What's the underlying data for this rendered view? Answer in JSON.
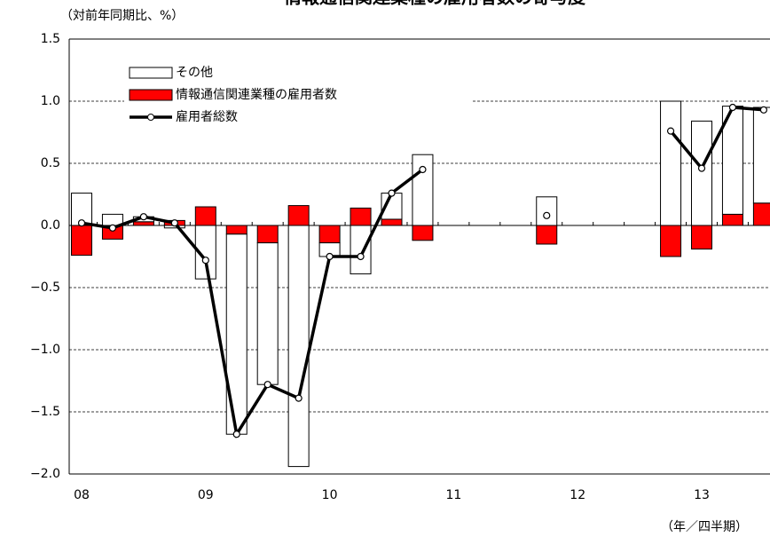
{
  "chart_data": {
    "type": "bar-line",
    "title": "情報通信関連業種の雇用者数の寄与度",
    "y_label": "（対前年同期比、%）",
    "x_label": "（年／四半期）",
    "categories": [
      "08",
      null,
      null,
      null,
      "09",
      null,
      null,
      null,
      "10",
      null,
      null,
      null,
      "11",
      null,
      null,
      null,
      "12",
      null,
      null,
      null,
      "13",
      null,
      null,
      null
    ],
    "series": [
      {
        "name": "その他",
        "kind": "bar",
        "color": "#ffffff",
        "values": [
          0.26,
          0.09,
          0.04,
          -0.02,
          -0.43,
          -1.61,
          -1.14,
          -1.94,
          -0.11,
          -0.39,
          0.21,
          0.57,
          null,
          null,
          null,
          0.23,
          null,
          null,
          null,
          1.0,
          0.84,
          0.87,
          0.77,
          null
        ]
      },
      {
        "name": "情報通信関連業種の雇用者数",
        "kind": "bar",
        "color": "#ff0000",
        "values": [
          -0.24,
          -0.11,
          0.03,
          0.04,
          0.15,
          -0.07,
          -0.14,
          0.16,
          -0.14,
          0.14,
          0.05,
          -0.12,
          null,
          null,
          null,
          -0.15,
          null,
          null,
          null,
          -0.25,
          -0.19,
          0.09,
          0.18,
          null
        ]
      },
      {
        "name": "雇用者総数",
        "kind": "line",
        "color": "#000000",
        "values": [
          0.02,
          -0.02,
          0.07,
          0.02,
          -0.28,
          -1.68,
          -1.28,
          -1.39,
          -0.25,
          -0.25,
          0.26,
          0.45,
          null,
          null,
          null,
          0.08,
          null,
          null,
          null,
          0.76,
          0.46,
          0.95,
          0.93,
          null
        ]
      }
    ],
    "ylim": [
      -2.0,
      1.5
    ],
    "yticks": [
      {
        "value": -2.0,
        "label": "−2.0"
      },
      {
        "value": -1.5,
        "label": "−1.5"
      },
      {
        "value": -1.0,
        "label": "−1.0"
      },
      {
        "value": -0.5,
        "label": "−0.5"
      },
      {
        "value": 0,
        "label": "0.0"
      },
      0.5,
      {
        "value": 1.0,
        "label": "1.0"
      },
      1.5
    ],
    "grid": true,
    "legend": "upper left"
  }
}
